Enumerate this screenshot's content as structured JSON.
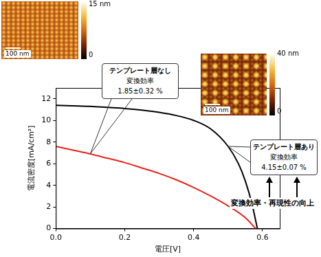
{
  "chart_data": {
    "type": "line",
    "x_label": "電圧[V]",
    "y_label": "電流密度[mA/cm²]",
    "xlim": [
      0,
      0.65
    ],
    "xticks": [
      {
        "value": 0,
        "label": "0.0"
      },
      {
        "value": 0.2,
        "label": "0.2"
      },
      {
        "value": 0.4,
        "label": "0.4"
      },
      {
        "value": 0.6,
        "label": "0.6"
      }
    ],
    "ylim": [
      0,
      13
    ],
    "yticks": [
      0,
      2,
      4,
      6,
      8,
      10,
      12
    ],
    "grid": false,
    "series": [
      {
        "name": "テンプレート層なし",
        "color": "#e8221b",
        "x": [
          0,
          0.05,
          0.1,
          0.15,
          0.2,
          0.25,
          0.3,
          0.35,
          0.4,
          0.45,
          0.5,
          0.55,
          0.58
        ],
        "values": [
          7.6,
          7.25,
          6.9,
          6.5,
          6.1,
          5.6,
          5.1,
          4.5,
          3.8,
          3.0,
          2.1,
          1.0,
          0.0
        ]
      },
      {
        "name": "テンプレート層あり",
        "color": "#000000",
        "x": [
          0,
          0.05,
          0.1,
          0.15,
          0.2,
          0.25,
          0.3,
          0.35,
          0.4,
          0.45,
          0.5,
          0.53,
          0.55,
          0.57,
          0.585
        ],
        "values": [
          11.4,
          11.35,
          11.3,
          11.2,
          11.1,
          10.95,
          10.75,
          10.45,
          10.0,
          9.2,
          7.6,
          6.0,
          4.4,
          2.2,
          0.0
        ]
      }
    ],
    "callouts": [
      {
        "series": "テンプレート層なし",
        "lines": [
          "変換効率",
          "1.85±0.32 %"
        ]
      },
      {
        "series": "テンプレート層あり",
        "lines": [
          "変換効率",
          "4.15±0.07 %"
        ]
      }
    ],
    "annotation": "変換効率・再現性の向上",
    "insets": [
      {
        "colorbar": {
          "range": [
            0,
            15
          ],
          "ticks": [
            0,
            {
              "value": 15,
              "label": "15 nm"
            }
          ]
        },
        "scale_bar": "100 nm"
      },
      {
        "colorbar": {
          "range": [
            0,
            40
          ],
          "ticks": [
            0,
            {
              "value": 40,
              "label": "40 nm"
            }
          ]
        },
        "scale_bar": "100 nm"
      }
    ]
  }
}
